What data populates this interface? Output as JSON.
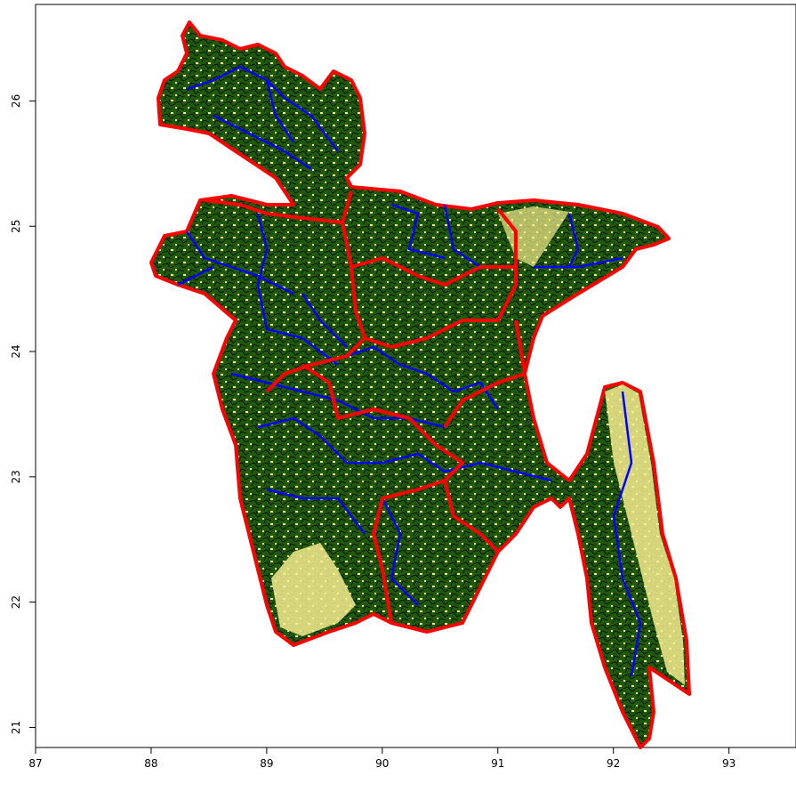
{
  "chart_data": {
    "type": "map",
    "xlim": [
      87,
      93.58
    ],
    "ylim": [
      20.84,
      26.77
    ],
    "xticks": [
      87,
      88,
      89,
      90,
      91,
      92,
      93
    ],
    "yticks": [
      21,
      22,
      23,
      24,
      25,
      26
    ]
  }
}
